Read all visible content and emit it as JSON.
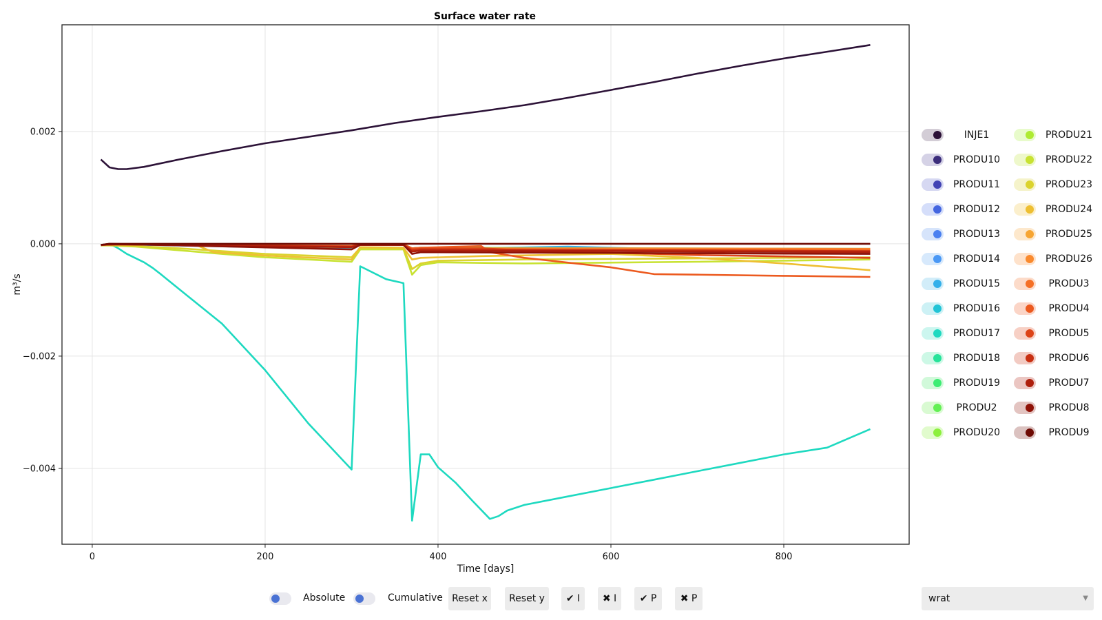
{
  "chart_data": {
    "type": "line",
    "title": "Surface water rate",
    "xlabel": "Time [days]",
    "ylabel": "m³/s",
    "xlim": [
      -35,
      945
    ],
    "ylim": [
      -0.00535,
      0.0039
    ],
    "xticks": [
      0,
      200,
      400,
      600,
      800
    ],
    "xtick_labels": [
      "0",
      "200",
      "400",
      "600",
      "800"
    ],
    "yticks": [
      0.002,
      0.0,
      -0.002,
      -0.004
    ],
    "ytick_labels": [
      "0.002",
      "0.000",
      "−0.002",
      "−0.004"
    ],
    "grid": true,
    "legend_position": "right",
    "series": [
      {
        "name": "INJE1",
        "color": "#2c1237",
        "x": [
          10,
          20,
          30,
          40,
          60,
          100,
          150,
          200,
          300,
          350,
          400,
          450,
          500,
          550,
          600,
          650,
          700,
          750,
          800,
          850,
          900
        ],
        "y": [
          0.0015,
          0.00136,
          0.00133,
          0.00133,
          0.00137,
          0.0015,
          0.00165,
          0.00179,
          0.00202,
          0.00215,
          0.00226,
          0.00236,
          0.00247,
          0.0026,
          0.00274,
          0.00288,
          0.00303,
          0.00317,
          0.0033,
          0.00342,
          0.00354
        ]
      },
      {
        "name": "PRODU10",
        "color": "#3b2d7b",
        "x": [
          10,
          30,
          300,
          310,
          360,
          370,
          380,
          500,
          900
        ],
        "y": [
          -3e-05,
          -1e-05,
          -8e-05,
          -2e-05,
          -2e-05,
          -0.00012,
          -0.0001,
          -0.00012,
          -0.00015
        ]
      },
      {
        "name": "PRODU11",
        "color": "#4244b4",
        "x": [
          10,
          30,
          300,
          310,
          360,
          370,
          380,
          500,
          900
        ],
        "y": [
          -2e-05,
          -1e-05,
          -6e-05,
          -2e-05,
          -2e-05,
          -0.0001,
          -9e-05,
          -0.0001,
          -0.00012
        ]
      },
      {
        "name": "PRODU12",
        "color": "#4466e0",
        "x": [
          10,
          30,
          300,
          310,
          360,
          370,
          380,
          500,
          900
        ],
        "y": [
          -2e-05,
          -1e-05,
          -5e-05,
          -1e-05,
          -2e-05,
          -8e-05,
          -7e-05,
          -8e-05,
          -0.0001
        ]
      },
      {
        "name": "PRODU13",
        "color": "#4a80f0",
        "x": [
          10,
          30,
          300,
          310,
          360,
          370,
          380,
          500,
          900
        ],
        "y": [
          -2e-05,
          -1e-05,
          -7e-05,
          -2e-05,
          -2e-05,
          -9e-05,
          -8e-05,
          -7e-05,
          -0.00014
        ]
      },
      {
        "name": "PRODU14",
        "color": "#4a98f5",
        "x": [
          10,
          30,
          300,
          310,
          360,
          370,
          380,
          500,
          900
        ],
        "y": [
          -2e-05,
          -1e-05,
          -9e-05,
          -2e-05,
          -2e-05,
          -0.00011,
          -0.0001,
          -9e-05,
          -0.00017
        ]
      },
      {
        "name": "PRODU15",
        "color": "#34b0ea",
        "x": [
          10,
          30,
          250,
          300,
          310,
          360,
          370,
          380,
          450,
          550,
          650,
          750,
          900
        ],
        "y": [
          -2e-05,
          -1e-05,
          -4e-05,
          -7e-05,
          -1e-05,
          -2e-05,
          -0.00013,
          -0.0001,
          -8e-05,
          -5e-05,
          -9e-05,
          -0.00012,
          -0.00014
        ]
      },
      {
        "name": "PRODU16",
        "color": "#22c4d6",
        "x": [
          10,
          30,
          300,
          310,
          360,
          370,
          380,
          500,
          700,
          900
        ],
        "y": [
          -2e-05,
          -1e-05,
          -5e-05,
          -1e-05,
          -2e-05,
          -0.00011,
          -9e-05,
          -0.0001,
          -0.00012,
          -0.00013
        ]
      },
      {
        "name": "PRODU17",
        "color": "#1ed9c0",
        "x": [
          10,
          20,
          30,
          40,
          60,
          70,
          80,
          100,
          150,
          200,
          250,
          300,
          310,
          340,
          360,
          370,
          380,
          390,
          400,
          420,
          440,
          460,
          470,
          480,
          500,
          550,
          600,
          650,
          700,
          750,
          800,
          850,
          900
        ],
        "y": [
          -3e-05,
          0.0,
          -8e-05,
          -0.00018,
          -0.00033,
          -0.00043,
          -0.00055,
          -0.0008,
          -0.00142,
          -0.00225,
          -0.0032,
          -0.00402,
          -0.0004,
          -0.00063,
          -0.0007,
          -0.00493,
          -0.00375,
          -0.00375,
          -0.00398,
          -0.00425,
          -0.00458,
          -0.0049,
          -0.00485,
          -0.00475,
          -0.00465,
          -0.0045,
          -0.00435,
          -0.0042,
          -0.00405,
          -0.0039,
          -0.00375,
          -0.00363,
          -0.0033
        ]
      },
      {
        "name": "PRODU18",
        "color": "#27e39a",
        "x": [
          10,
          30,
          300,
          310,
          360,
          370,
          380,
          600,
          900
        ],
        "y": [
          -2e-05,
          -1e-05,
          -6e-05,
          -2e-05,
          -2e-05,
          -0.00012,
          -0.0001,
          -0.00011,
          -0.00012
        ]
      },
      {
        "name": "PRODU19",
        "color": "#3ded74",
        "x": [
          10,
          30,
          300,
          310,
          360,
          370,
          380,
          600,
          900
        ],
        "y": [
          -2e-05,
          -1e-05,
          -5e-05,
          -1e-05,
          -2e-05,
          -0.0001,
          -9e-05,
          -0.0001,
          -0.00011
        ]
      },
      {
        "name": "PRODU2",
        "color": "#63f054",
        "x": [
          10,
          30,
          300,
          310,
          360,
          370,
          380,
          600,
          900
        ],
        "y": [
          -2e-05,
          -1e-05,
          -4e-05,
          -1e-05,
          -1e-05,
          -8e-05,
          -7e-05,
          -8e-05,
          -9e-05
        ]
      },
      {
        "name": "PRODU20",
        "color": "#8cf03d",
        "x": [
          10,
          30,
          300,
          310,
          360,
          370,
          380,
          600,
          900
        ],
        "y": [
          -2e-05,
          -1e-05,
          -5e-05,
          -1e-05,
          -1e-05,
          -9e-05,
          -8e-05,
          -9e-05,
          -0.0001
        ]
      },
      {
        "name": "PRODU21",
        "color": "#aeeb32",
        "x": [
          10,
          30,
          300,
          310,
          360,
          370,
          380,
          600,
          900
        ],
        "y": [
          -2e-05,
          -1e-05,
          -6e-05,
          -2e-05,
          -2e-05,
          -0.0001,
          -9e-05,
          -0.0001,
          -0.00011
        ]
      },
      {
        "name": "PRODU22",
        "color": "#c8e232",
        "x": [
          10,
          20,
          50,
          150,
          200,
          250,
          300,
          310,
          360,
          370,
          380,
          400,
          500,
          700,
          900
        ],
        "y": [
          -3e-05,
          -3e-05,
          -5e-05,
          -0.00018,
          -0.00024,
          -0.00028,
          -0.00032,
          -0.0001,
          -0.0001,
          -0.00055,
          -0.00038,
          -0.00033,
          -0.00035,
          -0.00032,
          -0.00028
        ]
      },
      {
        "name": "PRODU23",
        "color": "#dbd32e",
        "x": [
          10,
          20,
          100,
          200,
          300,
          310,
          360,
          370,
          380,
          400,
          500,
          700,
          900
        ],
        "y": [
          -3e-05,
          -2e-05,
          -8e-05,
          -0.00018,
          -0.00024,
          -7e-05,
          -8e-05,
          -0.00045,
          -0.00035,
          -0.0003,
          -0.00028,
          -0.00026,
          -0.00024
        ]
      },
      {
        "name": "PRODU24",
        "color": "#eebf32",
        "x": [
          10,
          30,
          120,
          140,
          200,
          300,
          310,
          360,
          370,
          380,
          450,
          600,
          700,
          800,
          900
        ],
        "y": [
          -2e-05,
          -1e-05,
          -2e-05,
          -0.00015,
          -0.00021,
          -0.00028,
          -6e-05,
          -7e-05,
          -0.00028,
          -0.00025,
          -0.00022,
          -0.00018,
          -0.00025,
          -0.00035,
          -0.00047
        ]
      },
      {
        "name": "PRODU25",
        "color": "#f7a532",
        "x": [
          10,
          30,
          300,
          310,
          360,
          370,
          380,
          600,
          900
        ],
        "y": [
          -2e-05,
          -1e-05,
          -5e-05,
          -2e-05,
          -2e-05,
          -0.00012,
          -0.0001,
          -0.0001,
          -0.00012
        ]
      },
      {
        "name": "PRODU26",
        "color": "#fa8a2e",
        "x": [
          10,
          30,
          300,
          310,
          360,
          370,
          380,
          600,
          900
        ],
        "y": [
          -2e-05,
          -1e-05,
          -4e-05,
          -1e-05,
          -1e-05,
          -9e-05,
          -8e-05,
          -8e-05,
          -9e-05
        ]
      },
      {
        "name": "PRODU3",
        "color": "#f57026",
        "x": [
          10,
          30,
          300,
          310,
          360,
          370,
          380,
          600,
          900
        ],
        "y": [
          -2e-05,
          -1e-05,
          -5e-05,
          -1e-05,
          -2e-05,
          -0.0001,
          -9e-05,
          -0.0001,
          -0.0001
        ]
      },
      {
        "name": "PRODU4",
        "color": "#ec5a1f",
        "x": [
          10,
          30,
          300,
          310,
          360,
          370,
          380,
          450,
          460,
          500,
          600,
          650,
          700,
          800,
          900
        ],
        "y": [
          -2e-05,
          -1e-05,
          -4e-05,
          -1e-05,
          -1e-05,
          -8e-05,
          -7e-05,
          -4e-05,
          -0.00015,
          -0.00025,
          -0.00042,
          -0.00054,
          -0.00055,
          -0.00057,
          -0.00059
        ]
      },
      {
        "name": "PRODU5",
        "color": "#dd4418",
        "x": [
          10,
          30,
          300,
          310,
          360,
          370,
          380,
          450,
          500,
          700,
          900
        ],
        "y": [
          -2e-05,
          -1e-05,
          -5e-05,
          -1e-05,
          -2e-05,
          -0.0001,
          -9e-05,
          -8e-05,
          -0.00012,
          -0.0002,
          -0.00025
        ]
      },
      {
        "name": "PRODU6",
        "color": "#c83012",
        "x": [
          10,
          30,
          300,
          310,
          360,
          370,
          380,
          600,
          900
        ],
        "y": [
          -2e-05,
          -1e-05,
          -5e-05,
          -2e-05,
          -2e-05,
          -0.00012,
          -0.0001,
          -0.00011,
          -0.00013
        ]
      },
      {
        "name": "PRODU7",
        "color": "#ae1f0c",
        "x": [
          10,
          30,
          300,
          310,
          360,
          370,
          380,
          600,
          900
        ],
        "y": [
          -2e-05,
          -1e-05,
          -6e-05,
          -2e-05,
          -2e-05,
          -0.00014,
          -0.00012,
          -0.00013,
          -0.00015
        ]
      },
      {
        "name": "PRODU8",
        "color": "#8f1207",
        "x": [
          10,
          20,
          300,
          310,
          360,
          370,
          380,
          900
        ],
        "y": [
          -2e-05,
          0.0,
          -0.0001,
          -2e-05,
          -2e-05,
          -0.00018,
          -0.00015,
          -0.00018
        ]
      },
      {
        "name": "PRODU9",
        "color": "#6e0a04",
        "x": [
          10,
          20,
          900
        ],
        "y": [
          -2e-05,
          0.0,
          0.0
        ]
      }
    ]
  },
  "legend_items": [
    {
      "name": "INJE1",
      "color": "#2c1237",
      "bg": "#d3cdd6"
    },
    {
      "name": "PRODU10",
      "color": "#3b2d7b",
      "bg": "#d5d2e6"
    },
    {
      "name": "PRODU11",
      "color": "#4244b4",
      "bg": "#d6d8f2"
    },
    {
      "name": "PRODU12",
      "color": "#4466e0",
      "bg": "#d5defa"
    },
    {
      "name": "PRODU13",
      "color": "#4a80f0",
      "bg": "#d6e4fb"
    },
    {
      "name": "PRODU14",
      "color": "#4a98f5",
      "bg": "#d7e9fc"
    },
    {
      "name": "PRODU15",
      "color": "#34b0ea",
      "bg": "#d2edf9"
    },
    {
      "name": "PRODU16",
      "color": "#22c4d6",
      "bg": "#cdf1f5"
    },
    {
      "name": "PRODU17",
      "color": "#1ed9c0",
      "bg": "#ccf6ef"
    },
    {
      "name": "PRODU18",
      "color": "#27e39a",
      "bg": "#cdf8e6"
    },
    {
      "name": "PRODU19",
      "color": "#3ded74",
      "bg": "#d1f9da"
    },
    {
      "name": "PRODU2",
      "color": "#63f054",
      "bg": "#d9fad2"
    },
    {
      "name": "PRODU20",
      "color": "#8cf03d",
      "bg": "#e1fbcd"
    },
    {
      "name": "PRODU21",
      "color": "#aeeb32",
      "bg": "#e8fbcb"
    },
    {
      "name": "PRODU22",
      "color": "#c8e232",
      "bg": "#eef8cb"
    },
    {
      "name": "PRODU23",
      "color": "#dbd32e",
      "bg": "#f5f3ca"
    },
    {
      "name": "PRODU24",
      "color": "#eebf32",
      "bg": "#fbefcc"
    },
    {
      "name": "PRODU25",
      "color": "#f7a532",
      "bg": "#fde8cc"
    },
    {
      "name": "PRODU26",
      "color": "#fa8a2e",
      "bg": "#fee2cb"
    },
    {
      "name": "PRODU3",
      "color": "#f57026",
      "bg": "#fcdbc9"
    },
    {
      "name": "PRODU4",
      "color": "#ec5a1f",
      "bg": "#fbd5c7"
    },
    {
      "name": "PRODU5",
      "color": "#dd4418",
      "bg": "#f7d0c5"
    },
    {
      "name": "PRODU6",
      "color": "#c83012",
      "bg": "#f2cbc3"
    },
    {
      "name": "PRODU7",
      "color": "#ae1f0c",
      "bg": "#ebc6c2"
    },
    {
      "name": "PRODU8",
      "color": "#8f1207",
      "bg": "#e3c4c1"
    },
    {
      "name": "PRODU9",
      "color": "#6e0a04",
      "bg": "#dbc2c0"
    }
  ],
  "controls": {
    "absolute_label": "Absolute",
    "cumulative_label": "Cumulative",
    "reset_x_label": "Reset x",
    "reset_y_label": "Reset y",
    "check_i_label": "✔ I",
    "cross_i_label": "✖ I",
    "check_p_label": "✔ P",
    "cross_p_label": "✖ P",
    "variable_selected": "wrat",
    "dropdown_arrow": "▼"
  },
  "colors": {
    "toggle_knob": "#4a72d4",
    "grid": "#e4e4e4",
    "axes": "#222222"
  }
}
